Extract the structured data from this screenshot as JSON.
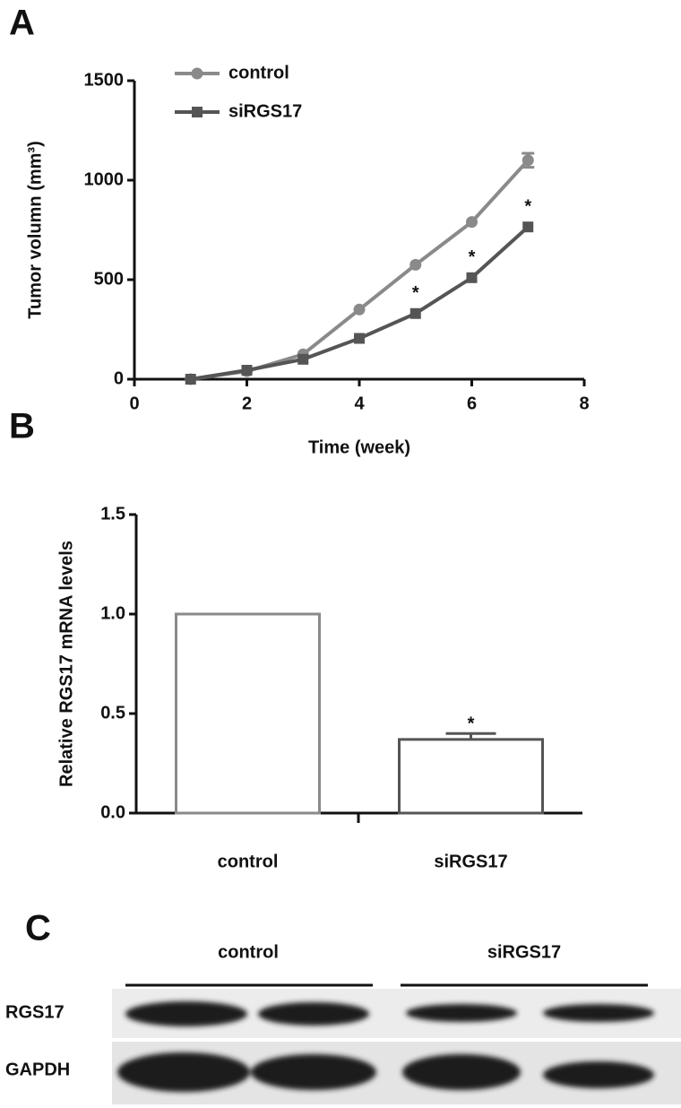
{
  "chart_data": [
    {
      "type": "line",
      "label": "A",
      "ylabel": "Tumor volumn (mm³)",
      "xlabel": "Time (week)",
      "xlim": [
        0,
        8
      ],
      "xticks": [
        0,
        2,
        4,
        6,
        8
      ],
      "ylim": [
        0,
        1500
      ],
      "yticks": [
        0,
        500,
        1000,
        1500
      ],
      "legend": "upper left",
      "series": [
        {
          "name": "control",
          "color": "#8a8a8a",
          "marker": "circle",
          "x": [
            1,
            2,
            3,
            4,
            5,
            6,
            7
          ],
          "values": [
            0,
            40,
            125,
            350,
            575,
            790,
            1100
          ],
          "errors": [
            null,
            null,
            null,
            null,
            null,
            null,
            35
          ]
        },
        {
          "name": "siRGS17",
          "color": "#555555",
          "marker": "square",
          "x": [
            1,
            2,
            3,
            4,
            5,
            6,
            7
          ],
          "values": [
            0,
            45,
            100,
            205,
            330,
            510,
            765
          ],
          "significance": [
            null,
            null,
            null,
            null,
            "*",
            "*",
            "*"
          ]
        }
      ]
    },
    {
      "type": "bar",
      "label": "B",
      "ylabel": "Relative RGS17 mRNA levels",
      "categories": [
        "control",
        "siRGS17"
      ],
      "values": [
        1.0,
        0.37
      ],
      "errors": [
        null,
        0.03
      ],
      "significance": [
        null,
        "*"
      ],
      "colors": [
        "#8a8a8a",
        "#555555"
      ],
      "ylim": [
        0,
        1.5
      ],
      "yticks": [
        {
          "value": 0,
          "label": "0.0"
        },
        0.5,
        {
          "value": 1,
          "label": "1.0"
        },
        1.5
      ]
    }
  ],
  "blot": {
    "label": "C",
    "groups": [
      "control",
      "siRGS17"
    ],
    "rows": [
      "RGS17",
      "GAPDH"
    ]
  }
}
